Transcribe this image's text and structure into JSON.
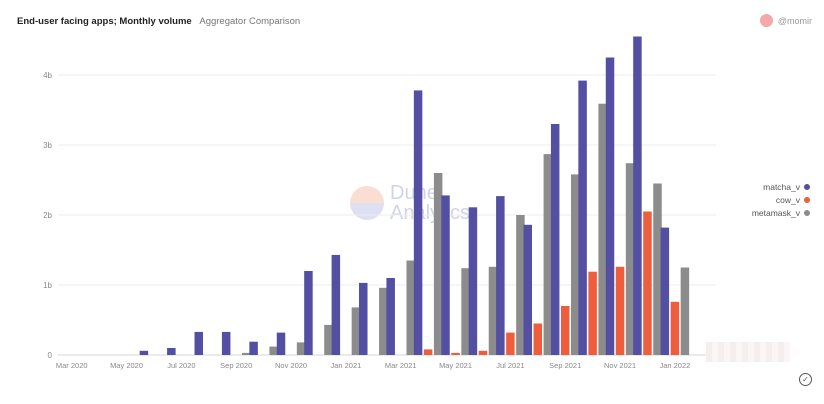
{
  "header": {
    "title": "End-user facing apps; Monthly volume",
    "subtitle": "Aggregator Comparison"
  },
  "author": {
    "name": "@momir",
    "avatar_color": "#f4a8a8"
  },
  "watermark": {
    "line1": "Dune",
    "line2": "Analytics"
  },
  "chart_data": {
    "type": "bar",
    "categories": [
      "Mar 2020",
      "Apr 2020",
      "May 2020",
      "Jun 2020",
      "Jul 2020",
      "Aug 2020",
      "Sep 2020",
      "Oct 2020",
      "Nov 2020",
      "Dec 2020",
      "Jan 2021",
      "Feb 2021",
      "Mar 2021",
      "Apr 2021",
      "May 2021",
      "Jun 2021",
      "Jul 2021",
      "Aug 2021",
      "Sep 2021",
      "Oct 2021",
      "Nov 2021",
      "Dec 2021",
      "Jan 2022",
      "Feb 2022"
    ],
    "tick_labels": [
      "Mar 2020",
      "May 2020",
      "Jul 2020",
      "Sep 2020",
      "Nov 2020",
      "Jan 2021",
      "Mar 2021",
      "May 2021",
      "Jul 2021",
      "Sep 2021",
      "Nov 2021",
      "Jan 2022"
    ],
    "y_ticks": [
      {
        "value": 0,
        "label": "0"
      },
      {
        "value": 1,
        "label": "1b"
      },
      {
        "value": 2,
        "label": "2b"
      },
      {
        "value": 3,
        "label": "3b"
      },
      {
        "value": 4,
        "label": "4b"
      }
    ],
    "ylim": [
      0,
      4.5
    ],
    "grid": true,
    "legend_position": "right",
    "series": [
      {
        "name": "matcha_v",
        "color": "#5350a3",
        "values": [
          0,
          0,
          0,
          0.06,
          0.1,
          0.33,
          0.33,
          0.19,
          0.32,
          1.2,
          1.43,
          1.03,
          1.1,
          3.78,
          2.28,
          2.11,
          2.27,
          1.86,
          3.3,
          3.92,
          4.25,
          4.55,
          1.82,
          0
        ]
      },
      {
        "name": "cow_v",
        "color": "#ee5d3c",
        "values": [
          0,
          0,
          0,
          0,
          0,
          0,
          0,
          0,
          0,
          0,
          0,
          0,
          0,
          0.08,
          0.03,
          0.06,
          0.32,
          0.45,
          0.7,
          1.19,
          1.26,
          2.05,
          0.76,
          0
        ]
      },
      {
        "name": "metamask_v",
        "color": "#8c8c8c",
        "values": [
          0,
          0,
          0,
          0,
          0,
          0,
          0.03,
          0.12,
          0.18,
          0.43,
          0.68,
          0.96,
          1.35,
          2.6,
          1.24,
          1.26,
          2.0,
          2.87,
          2.58,
          3.59,
          2.74,
          2.45,
          1.25,
          0
        ]
      }
    ]
  }
}
